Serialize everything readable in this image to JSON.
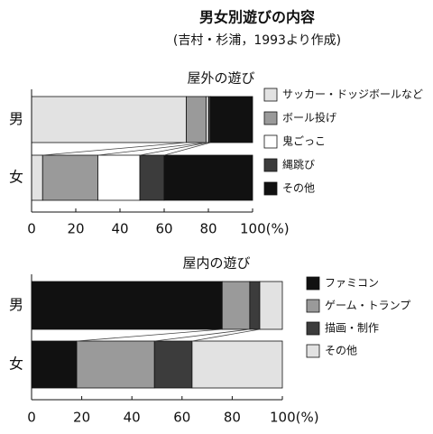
{
  "title": "男女別遊びの内容",
  "subtitle": "(吉村・杉浦，1993より作成)",
  "chart_data": [
    {
      "type": "bar",
      "orientation": "horizontal",
      "stacked": true,
      "title": "屋外の遊び",
      "categories": [
        "男",
        "女"
      ],
      "series": [
        {
          "name": "サッカー・ドッジボールなど",
          "color": "#e2e2e2",
          "values": [
            70,
            5
          ]
        },
        {
          "name": "ボール投げ",
          "color": "#9a9a9a",
          "values": [
            9,
            25
          ]
        },
        {
          "name": "鬼ごっこ",
          "color": "#ffffff",
          "values": [
            1,
            19
          ]
        },
        {
          "name": "縄跳び",
          "color": "#3c3c3c",
          "values": [
            1,
            11
          ]
        },
        {
          "name": "その他",
          "color": "#111111",
          "values": [
            19,
            40
          ]
        }
      ],
      "xlim": [
        0,
        100
      ],
      "xticks": [
        0,
        20,
        40,
        60,
        80,
        {
          "value": 100,
          "label": "100(%)"
        }
      ],
      "legend": "right"
    },
    {
      "type": "bar",
      "orientation": "horizontal",
      "stacked": true,
      "title": "屋内の遊び",
      "categories": [
        "男",
        "女"
      ],
      "series": [
        {
          "name": "ファミコン",
          "color": "#111111",
          "values": [
            76,
            18
          ]
        },
        {
          "name": "ゲーム・トランプ",
          "color": "#9a9a9a",
          "values": [
            11,
            31
          ]
        },
        {
          "name": "描画・制作",
          "color": "#3c3c3c",
          "values": [
            4,
            15
          ]
        },
        {
          "name": "その他",
          "color": "#e2e2e2",
          "values": [
            9,
            36
          ]
        }
      ],
      "xlim": [
        0,
        100
      ],
      "xticks": [
        0,
        20,
        40,
        60,
        80,
        {
          "value": 100,
          "label": "100(%)"
        }
      ],
      "legend": "right"
    }
  ]
}
